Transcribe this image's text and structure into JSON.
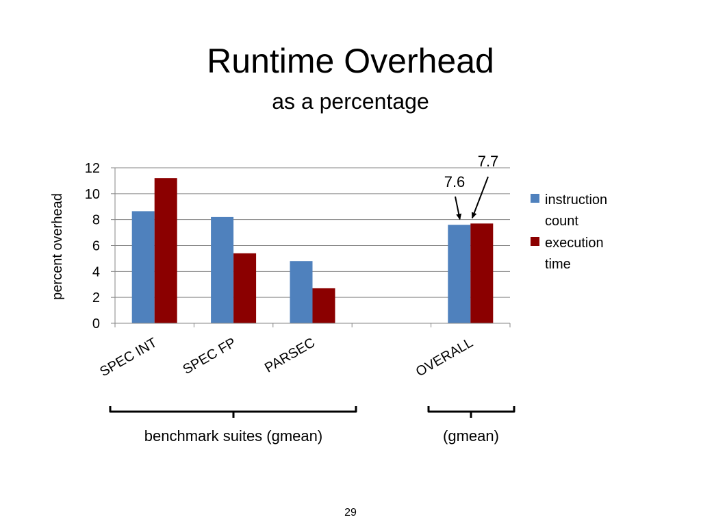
{
  "slide": {
    "title": "Runtime Overhead",
    "subtitle": "as a percentage",
    "page_number": "29"
  },
  "chart_data": {
    "type": "bar",
    "categories": [
      "SPEC INT",
      "SPEC FP",
      "PARSEC",
      "",
      "OVERALL"
    ],
    "series": [
      {
        "name": "instruction count",
        "color": "#4f81bd",
        "values": [
          8.65,
          8.2,
          4.8,
          null,
          7.6
        ]
      },
      {
        "name": "execution time",
        "color": "#8b0000",
        "values": [
          11.2,
          5.4,
          2.7,
          null,
          7.7
        ]
      }
    ],
    "ylabel": "percent overhead",
    "xlabel": "",
    "ylim": [
      0,
      12
    ],
    "yticks": [
      "0",
      "2",
      "4",
      "6",
      "8",
      "10",
      "12"
    ],
    "grid": true,
    "legend_position": "right",
    "legend": [
      {
        "lines": [
          "instruction",
          "count"
        ]
      },
      {
        "lines": [
          "execution",
          "time"
        ]
      }
    ],
    "annotations": [
      {
        "text": "7.6",
        "target": "OVERALL instruction count"
      },
      {
        "text": "7.7",
        "target": "OVERALL execution time"
      }
    ],
    "group_labels": [
      {
        "text": "benchmark suites (gmean)",
        "spans": [
          "SPEC INT",
          "SPEC FP",
          "PARSEC"
        ]
      },
      {
        "text": "(gmean)",
        "spans": [
          "OVERALL"
        ]
      }
    ]
  }
}
